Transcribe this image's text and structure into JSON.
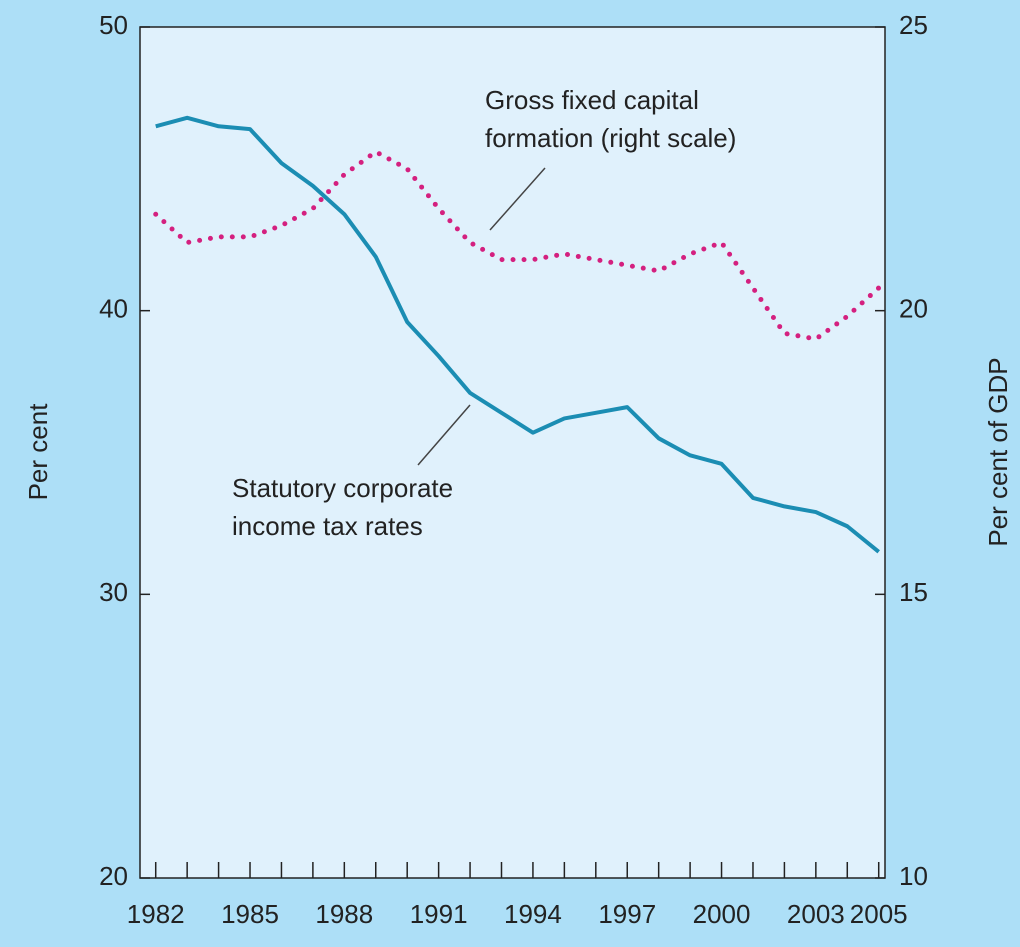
{
  "chart_data": {
    "type": "line",
    "x": [
      1982,
      1983,
      1984,
      1985,
      1986,
      1987,
      1988,
      1989,
      1990,
      1991,
      1992,
      1993,
      1994,
      1995,
      1996,
      1997,
      1998,
      1999,
      2000,
      2001,
      2002,
      2003,
      2004,
      2005
    ],
    "series": [
      {
        "name": "Statutory corporate income tax rates",
        "color": "#1b8db3",
        "style": "solid",
        "values": [
          46.5,
          46.8,
          46.5,
          46.4,
          45.2,
          44.4,
          43.4,
          41.9,
          39.6,
          38.4,
          37.1,
          36.4,
          35.7,
          36.2,
          36.4,
          36.6,
          35.5,
          34.9,
          34.6,
          33.4,
          33.1,
          32.9,
          32.4,
          31.5
        ]
      },
      {
        "name": "Gross fixed capital formation (right scale)",
        "color": "#d4207f",
        "style": "dotted",
        "axis": "y2",
        "values": [
          21.7,
          21.2,
          21.3,
          21.3,
          21.5,
          21.8,
          22.4,
          22.8,
          22.5,
          21.8,
          21.2,
          20.9,
          20.9,
          21.0,
          20.9,
          20.8,
          20.7,
          21.0,
          21.2,
          20.4,
          19.6,
          19.5,
          19.9,
          20.4
        ]
      }
    ],
    "annotations": [
      {
        "lines": [
          "Gross fixed capital",
          "formation (right scale)"
        ]
      },
      {
        "lines": [
          "Statutory corporate",
          "income tax rates"
        ]
      }
    ],
    "ylabel": "Per cent",
    "y2label": "Per cent of GDP",
    "xlim": [
      1981.5,
      2005.2
    ],
    "xticks": [
      1982,
      1985,
      1988,
      1991,
      1994,
      1997,
      2000,
      2003,
      2005
    ],
    "ylim": [
      20,
      50
    ],
    "yticks": [
      20,
      30,
      40,
      50
    ],
    "y2lim": [
      10,
      25
    ],
    "y2ticks": [
      10,
      15,
      20,
      25
    ]
  }
}
